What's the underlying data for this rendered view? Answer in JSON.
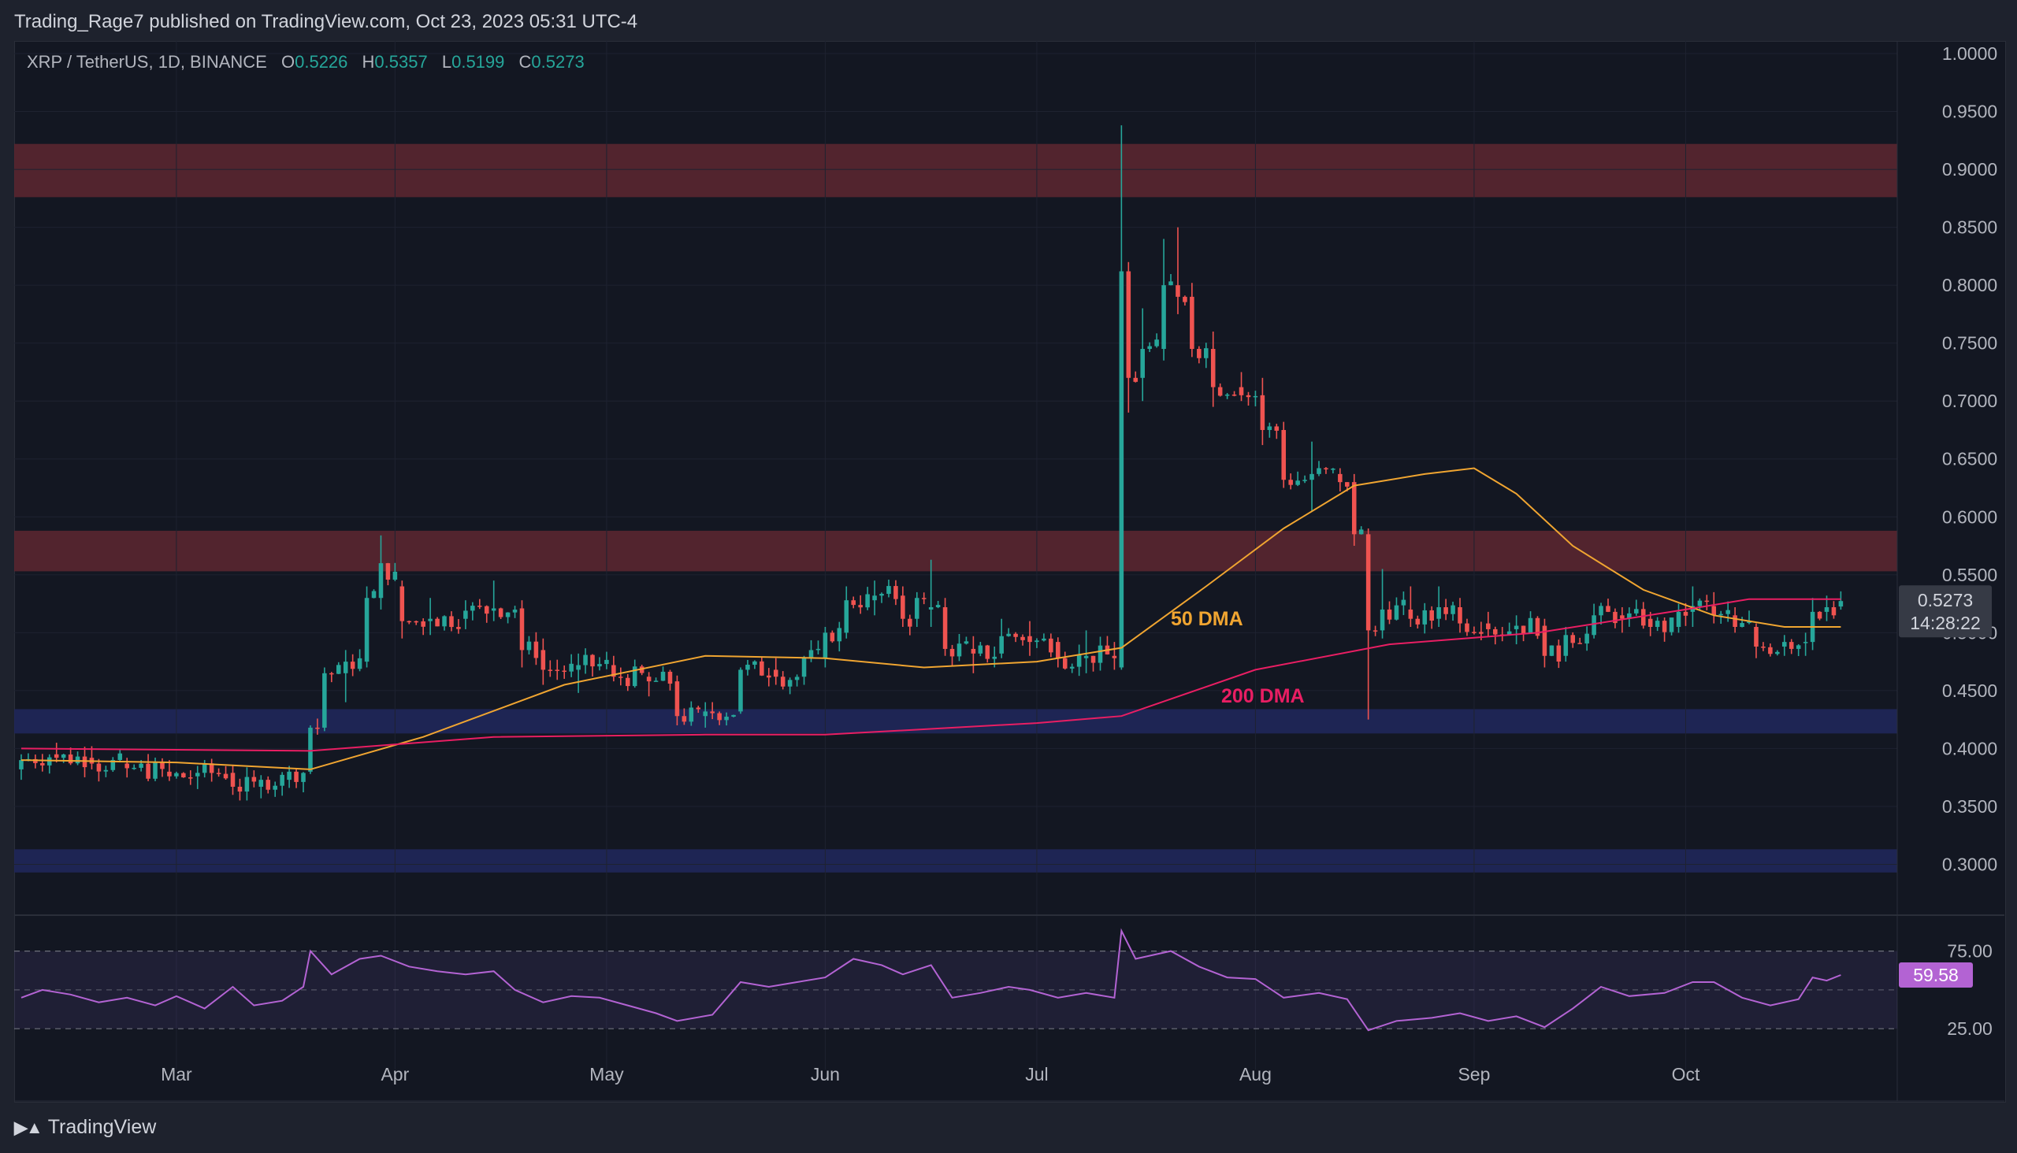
{
  "header": {
    "published": "Trading_Rage7 published on TradingView.com, Oct 23, 2023 05:31 UTC-4"
  },
  "legend": {
    "symbol": "XRP / TetherUS, 1D, BINANCE",
    "o_label": "O",
    "o": "0.5226",
    "h_label": "H",
    "h": "0.5357",
    "l_label": "L",
    "l": "0.5199",
    "c_label": "C",
    "c": "0.5273"
  },
  "footer": {
    "brand_icon": "tradingview-logo-icon",
    "brand": "TradingView"
  },
  "price_label": {
    "value": "0.5273",
    "countdown": "14:28:22"
  },
  "rsi_label": {
    "value": "59.58"
  },
  "annotations": {
    "dma50": "50 DMA",
    "dma200": "200 DMA"
  },
  "colors": {
    "up": "#26a69a",
    "down": "#ef5350",
    "dma50": "#f0a531",
    "dma200": "#e91e63",
    "rsi": "#b363d3",
    "resistance": "#5a2630",
    "support": "#20275a",
    "background": "#131722"
  },
  "chart_data": [
    {
      "type": "candlestick",
      "title": "XRP / TetherUS, 1D, BINANCE",
      "xlabel": "",
      "ylabel": "",
      "x_ticks": [
        {
          "label": "Mar",
          "date": "2023-03-01"
        },
        {
          "label": "Apr",
          "date": "2023-04-01"
        },
        {
          "label": "May",
          "date": "2023-05-01"
        },
        {
          "label": "Jun",
          "date": "2023-06-01"
        },
        {
          "label": "Jul",
          "date": "2023-07-01"
        },
        {
          "label": "Aug",
          "date": "2023-08-01"
        },
        {
          "label": "Sep",
          "date": "2023-09-01"
        },
        {
          "label": "Oct",
          "date": "2023-10-01"
        }
      ],
      "x_range": [
        "2023-02-06",
        "2023-10-31"
      ],
      "y_ticks": [
        "1.0000",
        "0.9500",
        "0.9000",
        "0.8500",
        "0.8000",
        "0.7500",
        "0.7000",
        "0.6500",
        "0.6000",
        "0.5500",
        "0.5000",
        "0.4500",
        "0.4000",
        "0.3500",
        "0.3000"
      ],
      "ylim": [
        0.2575,
        1.0
      ],
      "grid": true,
      "zones": [
        {
          "kind": "resistance",
          "from": 0.876,
          "to": 0.922
        },
        {
          "kind": "resistance",
          "from": 0.553,
          "to": 0.588
        },
        {
          "kind": "support",
          "from": 0.413,
          "to": 0.434
        },
        {
          "kind": "support",
          "from": 0.293,
          "to": 0.313
        }
      ],
      "ohlc_anchors": [
        [
          "2023-02-07",
          0.382,
          0.395,
          0.373,
          0.39
        ],
        [
          "2023-02-12",
          0.395,
          0.405,
          0.388,
          0.392
        ],
        [
          "2023-02-17",
          0.392,
          0.402,
          0.382,
          0.387
        ],
        [
          "2023-02-22",
          0.387,
          0.392,
          0.375,
          0.383
        ],
        [
          "2023-02-28",
          0.38,
          0.39,
          0.372,
          0.376
        ],
        [
          "2023-03-04",
          0.376,
          0.385,
          0.365,
          0.379
        ],
        [
          "2023-03-09",
          0.379,
          0.386,
          0.36,
          0.367
        ],
        [
          "2023-03-13",
          0.367,
          0.377,
          0.357,
          0.373
        ],
        [
          "2023-03-17",
          0.373,
          0.385,
          0.366,
          0.38
        ],
        [
          "2023-03-20",
          0.38,
          0.42,
          0.378,
          0.418
        ],
        [
          "2023-03-22",
          0.418,
          0.47,
          0.415,
          0.465
        ],
        [
          "2023-03-25",
          0.465,
          0.485,
          0.44,
          0.475
        ],
        [
          "2023-03-28",
          0.475,
          0.54,
          0.47,
          0.53
        ],
        [
          "2023-03-30",
          0.53,
          0.584,
          0.52,
          0.56
        ],
        [
          "2023-04-02",
          0.54,
          0.545,
          0.495,
          0.51
        ],
        [
          "2023-04-06",
          0.51,
          0.53,
          0.498,
          0.512
        ],
        [
          "2023-04-11",
          0.512,
          0.528,
          0.503,
          0.519
        ],
        [
          "2023-04-15",
          0.519,
          0.545,
          0.51,
          0.521
        ],
        [
          "2023-04-19",
          0.521,
          0.528,
          0.47,
          0.485
        ],
        [
          "2023-04-22",
          0.485,
          0.495,
          0.455,
          0.468
        ],
        [
          "2023-04-27",
          0.468,
          0.482,
          0.448,
          0.472
        ],
        [
          "2023-05-02",
          0.472,
          0.48,
          0.458,
          0.462
        ],
        [
          "2023-05-07",
          0.462,
          0.466,
          0.445,
          0.458
        ],
        [
          "2023-05-11",
          0.458,
          0.463,
          0.42,
          0.428
        ],
        [
          "2023-05-15",
          0.428,
          0.44,
          0.418,
          0.432
        ],
        [
          "2023-05-20",
          0.432,
          0.47,
          0.43,
          0.468
        ],
        [
          "2023-05-25",
          0.468,
          0.478,
          0.455,
          0.462
        ],
        [
          "2023-05-29",
          0.462,
          0.48,
          0.455,
          0.478
        ],
        [
          "2023-06-01",
          0.478,
          0.505,
          0.47,
          0.5
        ],
        [
          "2023-06-04",
          0.5,
          0.54,
          0.495,
          0.528
        ],
        [
          "2023-06-08",
          0.528,
          0.545,
          0.515,
          0.532
        ],
        [
          "2023-06-12",
          0.532,
          0.54,
          0.505,
          0.512
        ],
        [
          "2023-06-14",
          0.512,
          0.535,
          0.505,
          0.53
        ],
        [
          "2023-06-16",
          0.52,
          0.563,
          0.505,
          0.522
        ],
        [
          "2023-06-18",
          0.522,
          0.53,
          0.48,
          0.486
        ],
        [
          "2023-06-22",
          0.486,
          0.497,
          0.465,
          0.482
        ],
        [
          "2023-06-26",
          0.482,
          0.512,
          0.478,
          0.497
        ],
        [
          "2023-06-30",
          0.497,
          0.51,
          0.48,
          0.492
        ],
        [
          "2023-07-04",
          0.492,
          0.496,
          0.47,
          0.478
        ],
        [
          "2023-07-08",
          0.478,
          0.502,
          0.465,
          0.48
        ],
        [
          "2023-07-12",
          0.48,
          0.492,
          0.468,
          0.478
        ],
        [
          "2023-07-13",
          0.47,
          0.938,
          0.468,
          0.812
        ],
        [
          "2023-07-14",
          0.812,
          0.82,
          0.69,
          0.72
        ],
        [
          "2023-07-16",
          0.72,
          0.78,
          0.7,
          0.745
        ],
        [
          "2023-07-19",
          0.745,
          0.84,
          0.735,
          0.8
        ],
        [
          "2023-07-21",
          0.8,
          0.85,
          0.775,
          0.79
        ],
        [
          "2023-07-23",
          0.79,
          0.802,
          0.738,
          0.745
        ],
        [
          "2023-07-26",
          0.745,
          0.76,
          0.695,
          0.712
        ],
        [
          "2023-07-30",
          0.712,
          0.725,
          0.7,
          0.705
        ],
        [
          "2023-08-02",
          0.705,
          0.72,
          0.662,
          0.675
        ],
        [
          "2023-08-05",
          0.675,
          0.682,
          0.625,
          0.632
        ],
        [
          "2023-08-09",
          0.632,
          0.665,
          0.605,
          0.637
        ],
        [
          "2023-08-13",
          0.637,
          0.642,
          0.622,
          0.63
        ],
        [
          "2023-08-15",
          0.63,
          0.637,
          0.575,
          0.585
        ],
        [
          "2023-08-17",
          0.585,
          0.59,
          0.425,
          0.502
        ],
        [
          "2023-08-19",
          0.502,
          0.555,
          0.495,
          0.52
        ],
        [
          "2023-08-23",
          0.52,
          0.54,
          0.505,
          0.512
        ],
        [
          "2023-08-27",
          0.512,
          0.54,
          0.505,
          0.522
        ],
        [
          "2023-08-30",
          0.522,
          0.53,
          0.5,
          0.508
        ],
        [
          "2023-09-03",
          0.508,
          0.518,
          0.497,
          0.503
        ],
        [
          "2023-09-07",
          0.503,
          0.515,
          0.49,
          0.506
        ],
        [
          "2023-09-11",
          0.506,
          0.512,
          0.47,
          0.48
        ],
        [
          "2023-09-14",
          0.48,
          0.505,
          0.475,
          0.498
        ],
        [
          "2023-09-18",
          0.498,
          0.525,
          0.495,
          0.515
        ],
        [
          "2023-09-22",
          0.515,
          0.522,
          0.5,
          0.512
        ],
        [
          "2023-09-26",
          0.512,
          0.518,
          0.497,
          0.505
        ],
        [
          "2023-09-30",
          0.505,
          0.525,
          0.5,
          0.518
        ],
        [
          "2023-10-02",
          0.518,
          0.54,
          0.505,
          0.523
        ],
        [
          "2023-10-05",
          0.523,
          0.535,
          0.508,
          0.515
        ],
        [
          "2023-10-08",
          0.515,
          0.522,
          0.5,
          0.505
        ],
        [
          "2023-10-11",
          0.505,
          0.508,
          0.478,
          0.488
        ],
        [
          "2023-10-15",
          0.488,
          0.498,
          0.48,
          0.492
        ],
        [
          "2023-10-18",
          0.492,
          0.5,
          0.48,
          0.492
        ],
        [
          "2023-10-19",
          0.492,
          0.53,
          0.485,
          0.518
        ],
        [
          "2023-10-21",
          0.518,
          0.532,
          0.51,
          0.522
        ],
        [
          "2023-10-23",
          0.5226,
          0.5357,
          0.5199,
          0.5273
        ]
      ],
      "series": [
        {
          "name": "50 DMA",
          "type": "line",
          "points": [
            [
              "2023-02-07",
              0.39
            ],
            [
              "2023-03-01",
              0.388
            ],
            [
              "2023-03-20",
              0.382
            ],
            [
              "2023-04-05",
              0.41
            ],
            [
              "2023-04-25",
              0.455
            ],
            [
              "2023-05-15",
              0.48
            ],
            [
              "2023-06-01",
              0.478
            ],
            [
              "2023-06-15",
              0.47
            ],
            [
              "2023-07-01",
              0.475
            ],
            [
              "2023-07-13",
              0.487
            ],
            [
              "2023-07-25",
              0.54
            ],
            [
              "2023-08-05",
              0.59
            ],
            [
              "2023-08-15",
              0.627
            ],
            [
              "2023-08-25",
              0.637
            ],
            [
              "2023-09-01",
              0.642
            ],
            [
              "2023-09-07",
              0.62
            ],
            [
              "2023-09-15",
              0.575
            ],
            [
              "2023-09-25",
              0.537
            ],
            [
              "2023-10-05",
              0.515
            ],
            [
              "2023-10-15",
              0.505
            ],
            [
              "2023-10-23",
              0.505
            ]
          ]
        },
        {
          "name": "200 DMA",
          "type": "line",
          "points": [
            [
              "2023-02-07",
              0.4
            ],
            [
              "2023-03-20",
              0.398
            ],
            [
              "2023-04-15",
              0.41
            ],
            [
              "2023-05-15",
              0.412
            ],
            [
              "2023-06-01",
              0.412
            ],
            [
              "2023-07-01",
              0.422
            ],
            [
              "2023-07-13",
              0.428
            ],
            [
              "2023-08-01",
              0.468
            ],
            [
              "2023-08-20",
              0.49
            ],
            [
              "2023-09-10",
              0.5
            ],
            [
              "2023-10-01",
              0.52
            ],
            [
              "2023-10-10",
              0.529
            ],
            [
              "2023-10-23",
              0.529
            ]
          ]
        }
      ],
      "last_price": 0.5273,
      "countdown": "14:28:22"
    },
    {
      "type": "line",
      "title": "",
      "y_ticks": [
        "75.00",
        "25.00"
      ],
      "ylim": [
        18,
        89
      ],
      "bands": {
        "upper": 75,
        "middle": 50,
        "lower": 25
      },
      "last_value": 59.58,
      "series": [
        {
          "name": "",
          "points": [
            [
              "2023-02-07",
              45
            ],
            [
              "2023-02-10",
              50
            ],
            [
              "2023-02-14",
              47
            ],
            [
              "2023-02-18",
              42
            ],
            [
              "2023-02-22",
              45
            ],
            [
              "2023-02-26",
              40
            ],
            [
              "2023-03-01",
              46
            ],
            [
              "2023-03-05",
              38
            ],
            [
              "2023-03-09",
              52
            ],
            [
              "2023-03-12",
              40
            ],
            [
              "2023-03-16",
              43
            ],
            [
              "2023-03-19",
              52
            ],
            [
              "2023-03-20",
              75
            ],
            [
              "2023-03-23",
              60
            ],
            [
              "2023-03-27",
              70
            ],
            [
              "2023-03-30",
              72
            ],
            [
              "2023-04-03",
              65
            ],
            [
              "2023-04-07",
              62
            ],
            [
              "2023-04-11",
              60
            ],
            [
              "2023-04-15",
              62
            ],
            [
              "2023-04-18",
              50
            ],
            [
              "2023-04-22",
              42
            ],
            [
              "2023-04-26",
              46
            ],
            [
              "2023-04-30",
              45
            ],
            [
              "2023-05-04",
              40
            ],
            [
              "2023-05-08",
              35
            ],
            [
              "2023-05-11",
              30
            ],
            [
              "2023-05-16",
              34
            ],
            [
              "2023-05-20",
              55
            ],
            [
              "2023-05-24",
              52
            ],
            [
              "2023-05-28",
              55
            ],
            [
              "2023-06-01",
              58
            ],
            [
              "2023-06-05",
              70
            ],
            [
              "2023-06-09",
              66
            ],
            [
              "2023-06-12",
              60
            ],
            [
              "2023-06-16",
              66
            ],
            [
              "2023-06-19",
              45
            ],
            [
              "2023-06-23",
              48
            ],
            [
              "2023-06-27",
              52
            ],
            [
              "2023-06-30",
              50
            ],
            [
              "2023-07-04",
              45
            ],
            [
              "2023-07-08",
              48
            ],
            [
              "2023-07-12",
              45
            ],
            [
              "2023-07-13",
              88
            ],
            [
              "2023-07-15",
              70
            ],
            [
              "2023-07-20",
              75
            ],
            [
              "2023-07-24",
              65
            ],
            [
              "2023-07-28",
              58
            ],
            [
              "2023-08-01",
              57
            ],
            [
              "2023-08-05",
              45
            ],
            [
              "2023-08-10",
              48
            ],
            [
              "2023-08-14",
              44
            ],
            [
              "2023-08-17",
              24
            ],
            [
              "2023-08-21",
              30
            ],
            [
              "2023-08-26",
              32
            ],
            [
              "2023-08-30",
              35
            ],
            [
              "2023-09-03",
              30
            ],
            [
              "2023-09-07",
              33
            ],
            [
              "2023-09-11",
              26
            ],
            [
              "2023-09-15",
              38
            ],
            [
              "2023-09-19",
              52
            ],
            [
              "2023-09-23",
              46
            ],
            [
              "2023-09-28",
              48
            ],
            [
              "2023-10-02",
              55
            ],
            [
              "2023-10-05",
              55
            ],
            [
              "2023-10-09",
              45
            ],
            [
              "2023-10-13",
              40
            ],
            [
              "2023-10-17",
              44
            ],
            [
              "2023-10-19",
              58
            ],
            [
              "2023-10-21",
              56
            ],
            [
              "2023-10-23",
              59.58
            ]
          ]
        }
      ]
    }
  ]
}
